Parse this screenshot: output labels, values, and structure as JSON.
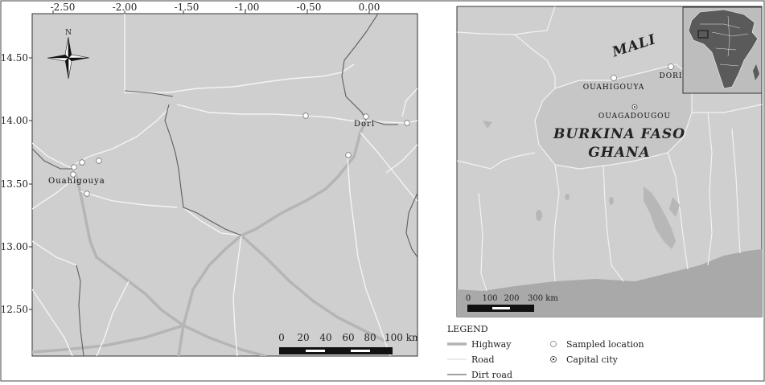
{
  "left_map": {
    "x_ticks": [
      "-2.50",
      "-2.00",
      "-1.50",
      "-1.00",
      "-0.50",
      "0.00"
    ],
    "y_ticks": [
      "14.50",
      "14.00",
      "13.50",
      "13.00",
      "12.50"
    ],
    "north_label": "N",
    "cities": {
      "ouahigouya": "Ouahigouya",
      "dori": "Dori"
    },
    "scale_labels": [
      "0",
      "20",
      "40",
      "60",
      "80",
      "100 km"
    ]
  },
  "right_map": {
    "country_labels": {
      "mali": "MALI",
      "burkina": "BURKINA FASO",
      "ghana": "GHANA"
    },
    "cities": {
      "ouahigouya": "OUAHIGOUYA",
      "dori": "DORI",
      "ouagadougou": "OUAGADOUGOU"
    },
    "scale_labels": [
      "0",
      "100",
      "200",
      "300 km"
    ]
  },
  "legend": {
    "title": "LEGEND",
    "highway": "Highway",
    "road": "Road",
    "dirt_road": "Dirt road",
    "sampled": "Sampled location",
    "capital": "Capital city"
  },
  "colors": {
    "land": "#cfcfcf",
    "highway": "#b3b3b3",
    "road": "#f2f2f2",
    "dirt_road": "#666666",
    "sea": "#a8a8a8"
  }
}
